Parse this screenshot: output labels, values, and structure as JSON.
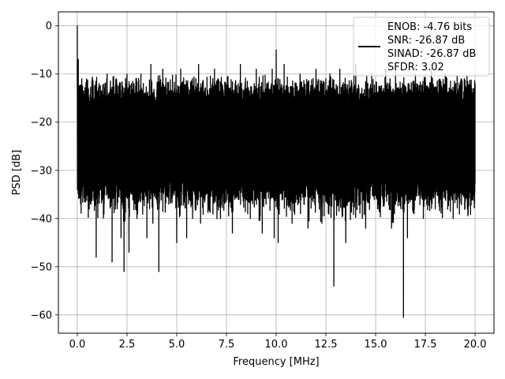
{
  "chart_data": {
    "type": "line",
    "title": "",
    "xlabel": "Frequency [MHz]",
    "ylabel": "PSD [dB]",
    "xlim": [
      -0.95,
      20.95
    ],
    "ylim": [
      -63.8,
      2.9
    ],
    "xticks": [
      0.0,
      2.5,
      5.0,
      7.5,
      10.0,
      12.5,
      15.0,
      17.5,
      20.0
    ],
    "xtick_labels": [
      "0.0",
      "2.5",
      "5.0",
      "7.5",
      "10.0",
      "12.5",
      "15.0",
      "17.5",
      "20.0"
    ],
    "yticks": [
      0,
      -10,
      -20,
      -30,
      -40,
      -50,
      -60
    ],
    "ytick_labels": [
      "0",
      "−10",
      "−20",
      "−30",
      "−40",
      "−50",
      "−60"
    ],
    "grid": true,
    "legend_position": "top-right",
    "legend_lines": [
      "ENOB: -4.76 bits",
      "SNR: -26.87 dB",
      "SINAD: -26.87 dB",
      "SFDR: 3.02"
    ],
    "series_color": "#000000",
    "series": [
      {
        "x_range": [
          0.0,
          20.0
        ],
        "noise_band_upper": [
          -10,
          -8
        ],
        "noise_band_lower_typical": [
          -36,
          -30
        ],
        "points": [
          [
            0.0,
            0.0
          ],
          [
            0.02,
            -12
          ],
          [
            0.05,
            -7
          ],
          [
            0.12,
            -33
          ],
          [
            0.2,
            -13
          ],
          [
            0.4,
            -32
          ],
          [
            0.6,
            -38
          ],
          [
            0.75,
            -11
          ],
          [
            0.95,
            -48
          ],
          [
            1.1,
            -12
          ],
          [
            1.35,
            -37
          ],
          [
            1.5,
            -10
          ],
          [
            1.75,
            -49
          ],
          [
            1.95,
            -11
          ],
          [
            2.2,
            -44
          ],
          [
            2.35,
            -51
          ],
          [
            2.5,
            -10
          ],
          [
            2.6,
            -47
          ],
          [
            2.85,
            -12
          ],
          [
            3.0,
            -40
          ],
          [
            3.2,
            -10
          ],
          [
            3.5,
            -44
          ],
          [
            3.7,
            -8
          ],
          [
            3.8,
            -41
          ],
          [
            4.1,
            -51
          ],
          [
            4.3,
            -9
          ],
          [
            4.6,
            -37
          ],
          [
            5.0,
            -45
          ],
          [
            5.2,
            -9
          ],
          [
            5.5,
            -44
          ],
          [
            5.8,
            -40
          ],
          [
            6.1,
            -8
          ],
          [
            6.2,
            -41
          ],
          [
            6.6,
            -38
          ],
          [
            6.9,
            -9
          ],
          [
            7.2,
            -40
          ],
          [
            7.8,
            -43
          ],
          [
            8.2,
            -8
          ],
          [
            8.7,
            -40
          ],
          [
            9.0,
            -9
          ],
          [
            9.3,
            -43
          ],
          [
            9.8,
            -9
          ],
          [
            9.9,
            -44
          ],
          [
            10.0,
            -5
          ],
          [
            10.1,
            -45
          ],
          [
            10.4,
            -8
          ],
          [
            10.8,
            -41
          ],
          [
            11.2,
            -10
          ],
          [
            11.6,
            -42
          ],
          [
            12.0,
            -9
          ],
          [
            12.3,
            -41
          ],
          [
            12.7,
            -10
          ],
          [
            12.9,
            -54
          ],
          [
            13.2,
            -9
          ],
          [
            13.5,
            -45
          ],
          [
            14.0,
            -8
          ],
          [
            14.5,
            -42
          ],
          [
            14.8,
            -10
          ],
          [
            15.1,
            -38
          ],
          [
            15.5,
            -9
          ],
          [
            15.8,
            -42
          ],
          [
            16.0,
            -9
          ],
          [
            16.4,
            -60.5
          ],
          [
            16.6,
            -44
          ],
          [
            17.0,
            -10
          ],
          [
            17.4,
            -40
          ],
          [
            17.8,
            -9
          ],
          [
            18.0,
            -38
          ],
          [
            18.5,
            -10
          ],
          [
            18.9,
            -40
          ],
          [
            19.3,
            -11
          ],
          [
            19.6,
            -36
          ],
          [
            20.0,
            -12
          ]
        ]
      }
    ]
  }
}
